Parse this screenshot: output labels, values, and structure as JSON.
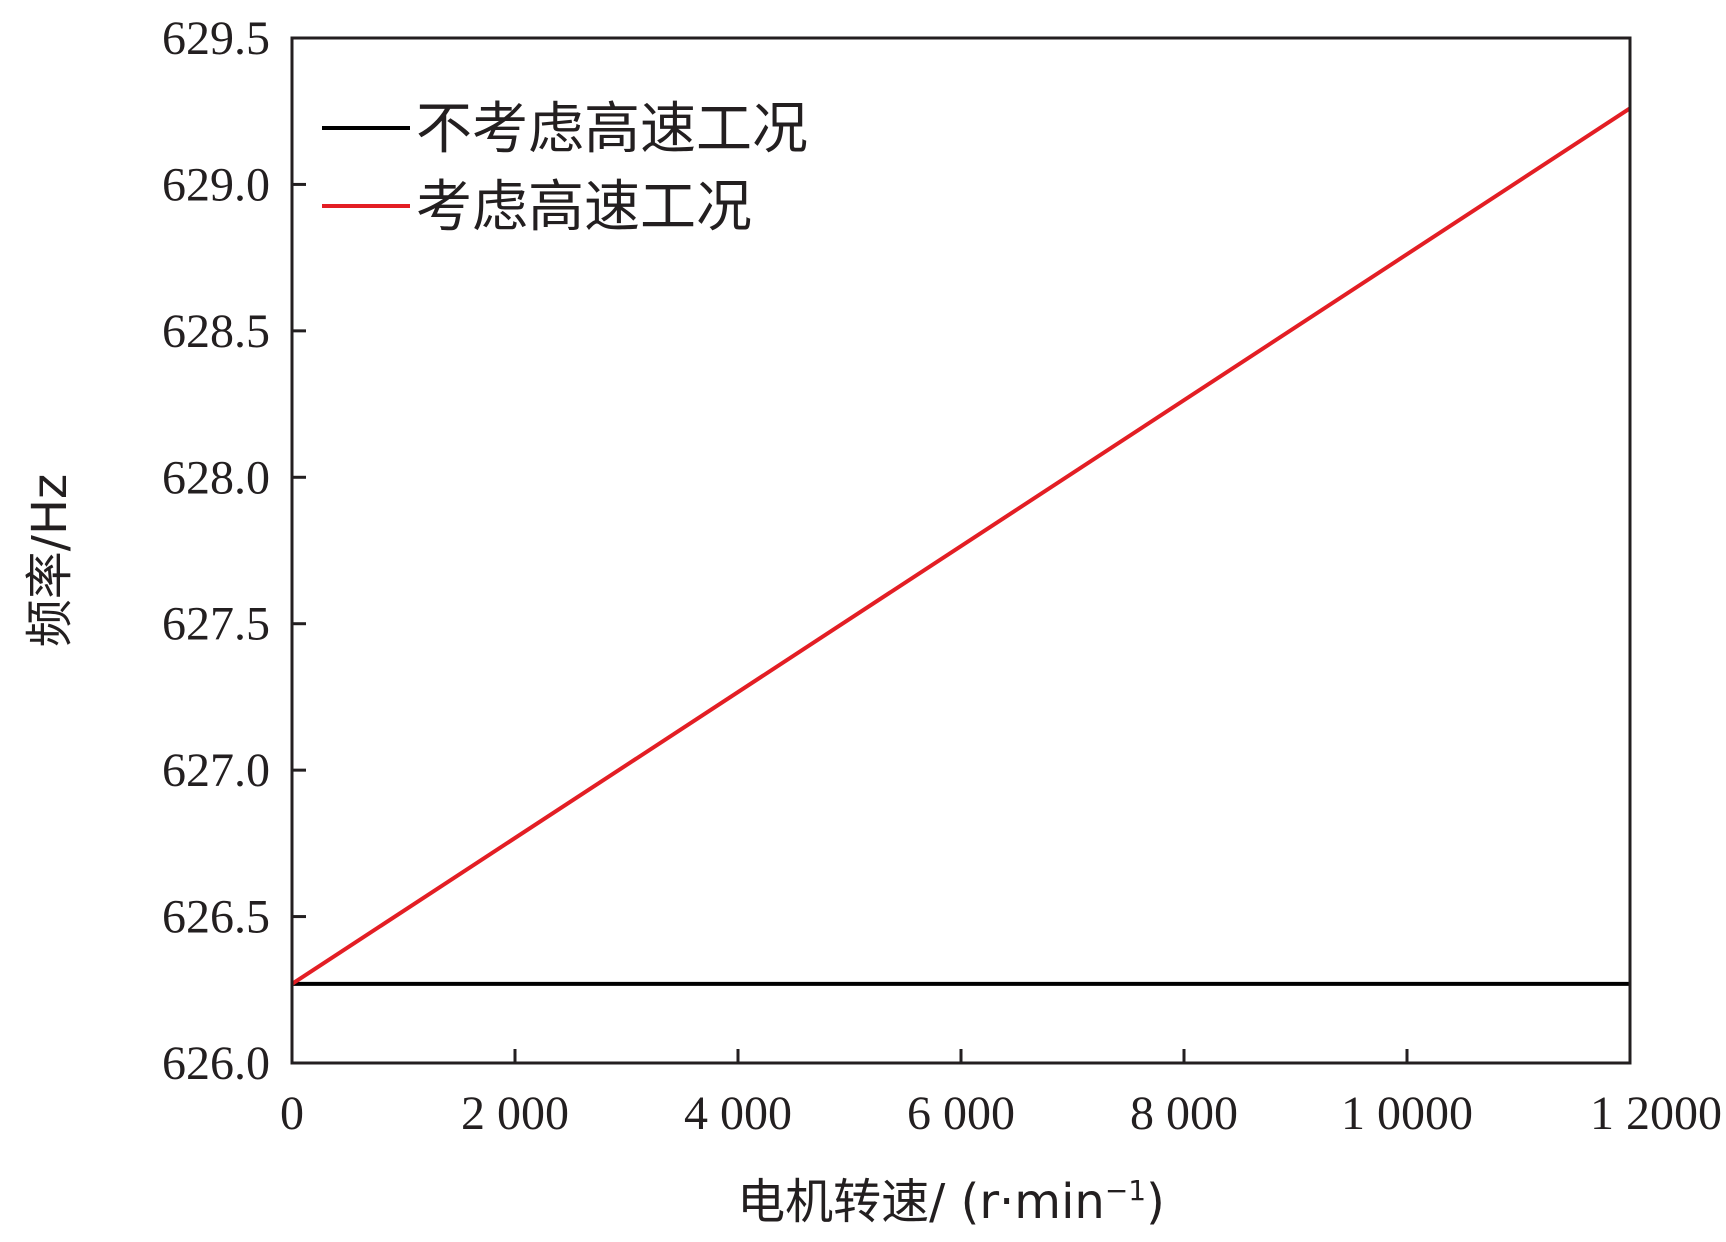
{
  "chart_data": {
    "type": "line",
    "xlabel": "电机转速/ (r·min⁻¹)",
    "xlabel_main": "电机转速/ (r·min",
    "xlabel_sup": "−1",
    "xlabel_close": ")",
    "ylabel": "频率/Hz",
    "xlim": [
      0,
      12000
    ],
    "ylim": [
      626.0,
      629.5
    ],
    "x_ticks": [
      0,
      2000,
      4000,
      6000,
      8000,
      10000,
      12000
    ],
    "x_tick_labels": [
      "0",
      "2 000",
      "4 000",
      "6 000",
      "8 000",
      "1 0000",
      "1 2000"
    ],
    "y_ticks": [
      626.0,
      626.5,
      627.0,
      627.5,
      628.0,
      628.5,
      629.0,
      629.5
    ],
    "y_tick_labels": [
      "626.0",
      "626.5",
      "627.0",
      "627.5",
      "628.0",
      "628.5",
      "629.0",
      "629.5"
    ],
    "grid": false,
    "legend_position": "top-left",
    "series": [
      {
        "name": "不考虑高速工况",
        "color": "#000000",
        "x": [
          0,
          12000
        ],
        "y": [
          626.27,
          626.27
        ]
      },
      {
        "name": "考虑高速工况",
        "color": "#e31e24",
        "x": [
          0,
          12000
        ],
        "y": [
          626.27,
          629.26
        ]
      }
    ]
  }
}
